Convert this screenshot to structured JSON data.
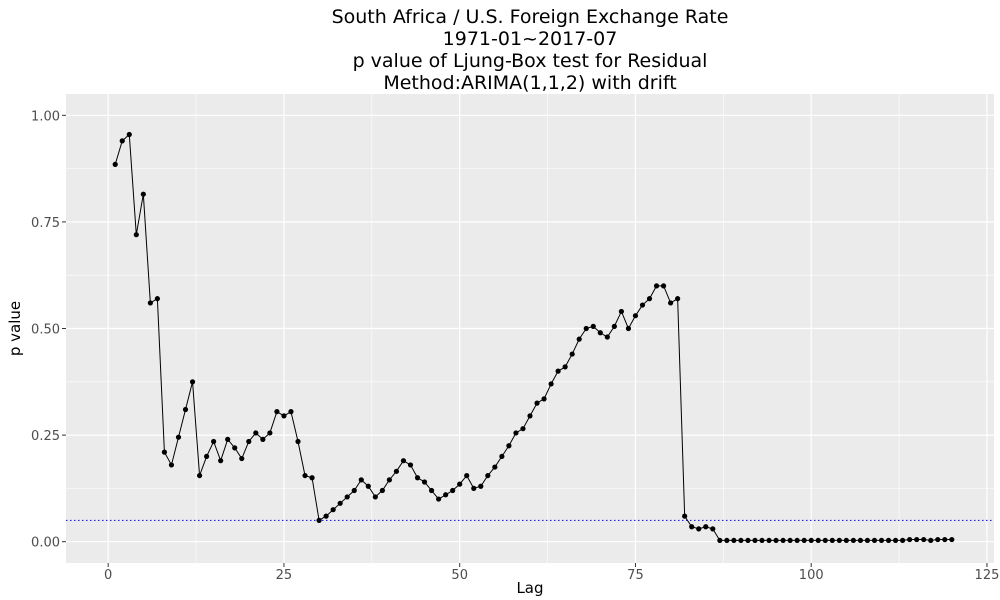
{
  "chart_data": {
    "type": "line",
    "title_lines": [
      "South Africa / U.S. Foreign Exchange Rate",
      "1971-01~2017-07",
      "p value of Ljung-Box test for Residual",
      "Method:ARIMA(1,1,2) with drift"
    ],
    "xlabel": "Lag",
    "ylabel": "p value",
    "xlim": [
      -6,
      126
    ],
    "ylim": [
      -0.05,
      1.05
    ],
    "x_ticks": [
      0,
      25,
      50,
      75,
      100,
      125
    ],
    "y_ticks": [
      0.0,
      0.25,
      0.5,
      0.75,
      1.0
    ],
    "x_tick_labels": [
      "0",
      "25",
      "50",
      "75",
      "100",
      "125"
    ],
    "y_tick_labels": [
      "0.00",
      "0.25",
      "0.50",
      "0.75",
      "1.00"
    ],
    "grid": true,
    "reference_line": {
      "y": 0.05,
      "style": "dotted",
      "color": "#0000ff"
    },
    "colors": {
      "panel": "#ebebeb",
      "grid": "#ffffff",
      "line": "#000000",
      "point": "#000000"
    },
    "x": [
      1,
      2,
      3,
      4,
      5,
      6,
      7,
      8,
      9,
      10,
      11,
      12,
      13,
      14,
      15,
      16,
      17,
      18,
      19,
      20,
      21,
      22,
      23,
      24,
      25,
      26,
      27,
      28,
      29,
      30,
      31,
      32,
      33,
      34,
      35,
      36,
      37,
      38,
      39,
      40,
      41,
      42,
      43,
      44,
      45,
      46,
      47,
      48,
      49,
      50,
      51,
      52,
      53,
      54,
      55,
      56,
      57,
      58,
      59,
      60,
      61,
      62,
      63,
      64,
      65,
      66,
      67,
      68,
      69,
      70,
      71,
      72,
      73,
      74,
      75,
      76,
      77,
      78,
      79,
      80,
      81,
      82,
      83,
      84,
      85,
      86,
      87,
      88,
      89,
      90,
      91,
      92,
      93,
      94,
      95,
      96,
      97,
      98,
      99,
      100,
      101,
      102,
      103,
      104,
      105,
      106,
      107,
      108,
      109,
      110,
      111,
      112,
      113,
      114,
      115,
      116,
      117,
      118,
      119,
      120
    ],
    "values": [
      0.885,
      0.94,
      0.955,
      0.72,
      0.815,
      0.56,
      0.57,
      0.21,
      0.18,
      0.245,
      0.31,
      0.375,
      0.155,
      0.2,
      0.235,
      0.19,
      0.24,
      0.22,
      0.195,
      0.235,
      0.255,
      0.24,
      0.255,
      0.305,
      0.295,
      0.305,
      0.235,
      0.155,
      0.15,
      0.05,
      0.06,
      0.075,
      0.09,
      0.105,
      0.12,
      0.145,
      0.13,
      0.105,
      0.12,
      0.145,
      0.165,
      0.19,
      0.18,
      0.15,
      0.14,
      0.12,
      0.1,
      0.11,
      0.12,
      0.135,
      0.155,
      0.125,
      0.13,
      0.155,
      0.175,
      0.2,
      0.225,
      0.255,
      0.265,
      0.295,
      0.325,
      0.335,
      0.37,
      0.4,
      0.41,
      0.44,
      0.475,
      0.5,
      0.505,
      0.49,
      0.48,
      0.505,
      0.54,
      0.5,
      0.53,
      0.555,
      0.57,
      0.6,
      0.6,
      0.56,
      0.57,
      0.06,
      0.035,
      0.03,
      0.035,
      0.03,
      0.003,
      0.003,
      0.003,
      0.003,
      0.003,
      0.003,
      0.003,
      0.003,
      0.003,
      0.003,
      0.003,
      0.003,
      0.003,
      0.003,
      0.003,
      0.003,
      0.003,
      0.003,
      0.003,
      0.003,
      0.003,
      0.003,
      0.003,
      0.003,
      0.003,
      0.003,
      0.003,
      0.005,
      0.005,
      0.005,
      0.003,
      0.005,
      0.005,
      0.005
    ]
  }
}
